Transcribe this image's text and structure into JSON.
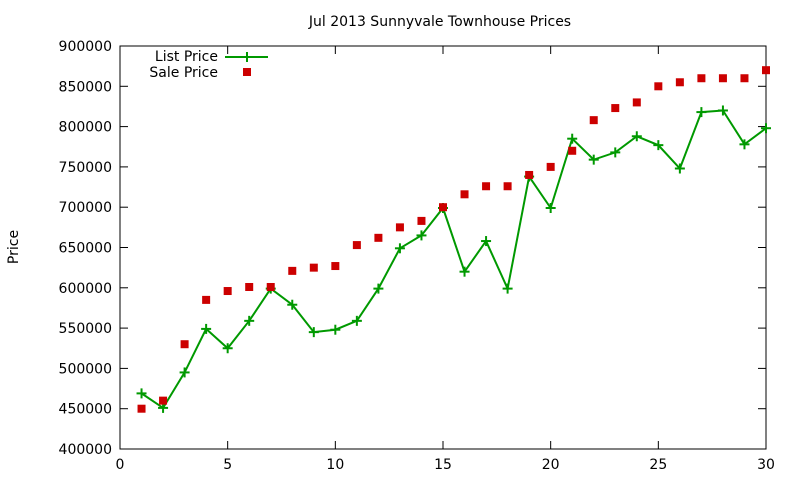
{
  "chart_data": {
    "type": "line",
    "title": "Jul 2013 Sunnyvale Townhouse Prices",
    "xlabel": "",
    "ylabel": "Price",
    "xlim": [
      0,
      30
    ],
    "ylim": [
      400000,
      900000
    ],
    "xticks": [
      0,
      5,
      10,
      15,
      20,
      25,
      30
    ],
    "yticks": [
      400000,
      450000,
      500000,
      550000,
      600000,
      650000,
      700000,
      750000,
      800000,
      850000,
      900000
    ],
    "grid": false,
    "legend_position": "top-left",
    "series": [
      {
        "name": "List Price",
        "style": "line+plus",
        "color": "#009900",
        "x": [
          1,
          2,
          3,
          4,
          5,
          6,
          7,
          8,
          9,
          10,
          11,
          12,
          13,
          14,
          15,
          16,
          17,
          18,
          19,
          20,
          21,
          22,
          23,
          24,
          25,
          26,
          27,
          28,
          29,
          30
        ],
        "y": [
          469000,
          451000,
          495000,
          549000,
          525000,
          559000,
          599000,
          579000,
          545000,
          548000,
          559000,
          599000,
          649000,
          665000,
          699000,
          620000,
          658000,
          599000,
          738000,
          699000,
          785000,
          759000,
          768000,
          788000,
          777000,
          748000,
          818000,
          820000,
          778000,
          798000
        ]
      },
      {
        "name": "Sale Price",
        "style": "square",
        "color": "#cc0000",
        "x": [
          1,
          2,
          3,
          4,
          5,
          6,
          7,
          8,
          9,
          10,
          11,
          12,
          13,
          14,
          15,
          16,
          17,
          18,
          19,
          20,
          21,
          22,
          23,
          24,
          25,
          26,
          27,
          28,
          29,
          30
        ],
        "y": [
          450000,
          460000,
          530000,
          585000,
          596000,
          601000,
          601000,
          621000,
          625000,
          627000,
          653000,
          662000,
          675000,
          683000,
          700000,
          716000,
          726000,
          726000,
          740000,
          750000,
          770000,
          808000,
          823000,
          830000,
          850000,
          855000,
          860000,
          860000,
          860000,
          870000
        ]
      }
    ]
  }
}
